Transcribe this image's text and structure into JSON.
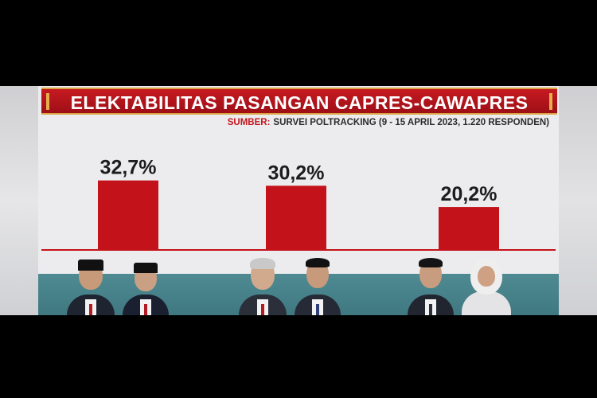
{
  "title": "ELEKTABILITAS PASANGAN CAPRES-CAWAPRES",
  "source_label": "SUMBER:",
  "source_text": "SURVEI POLTRACKING (9 - 15 APRIL 2023, 1.220 RESPONDEN)",
  "colors": {
    "bar": "#c4121a",
    "title_bg": "#b3141c",
    "accent_gold": "#d9a441",
    "strip": "#4a858d"
  },
  "chart_data": {
    "type": "bar",
    "title": "ELEKTABILITAS PASANGAN CAPRES-CAWAPRES",
    "categories": [
      "",
      "",
      ""
    ],
    "values": [
      32.7,
      30.2,
      20.2
    ],
    "data_labels": [
      "32,7%",
      "30,2%",
      "20,2%"
    ],
    "ylim": [
      0,
      40
    ],
    "grid": false,
    "legend": "none"
  }
}
